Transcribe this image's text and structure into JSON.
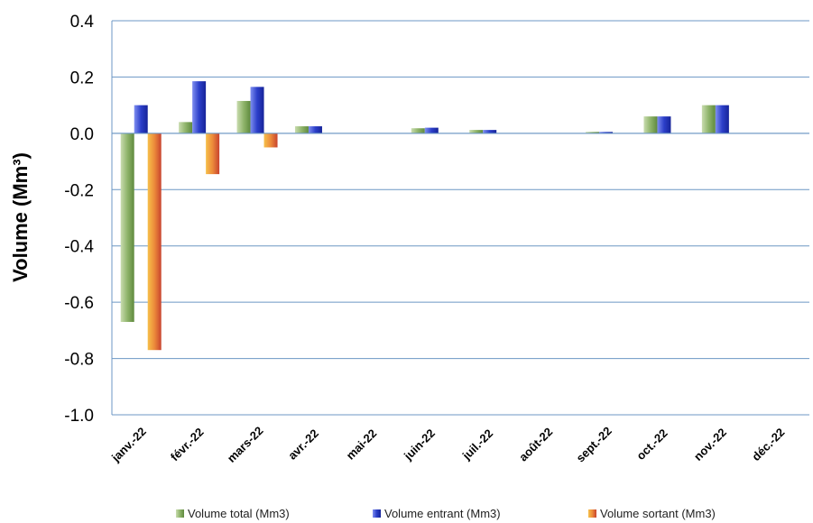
{
  "chart_data": {
    "type": "bar",
    "title": "",
    "xlabel": "",
    "ylabel": "Volume (Mm³)",
    "ylim": [
      -1.0,
      0.4
    ],
    "yticks": [
      "0.4",
      "0.2",
      "0.0",
      "-0.2",
      "-0.4",
      "-0.6",
      "-0.8",
      "-1.0"
    ],
    "ytick_values": [
      0.4,
      0.2,
      0.0,
      -0.2,
      -0.4,
      -0.6,
      -0.8,
      -1.0
    ],
    "grid": "horizontal",
    "legend_position": "bottom",
    "categories": [
      "janv.-22",
      "févr.-22",
      "mars-22",
      "avr.-22",
      "mai-22",
      "juin-22",
      "juil.-22",
      "août-22",
      "sept.-22",
      "oct.-22",
      "nov.-22",
      "déc.-22"
    ],
    "series": [
      {
        "name": "Volume total (Mm3)",
        "color": "#8fb46b",
        "values": [
          -0.67,
          0.04,
          0.115,
          0.025,
          0,
          0.018,
          0.012,
          0,
          0.005,
          0.06,
          0.1,
          0
        ]
      },
      {
        "name": "Volume entrant (Mm3)",
        "color": "#2c3fc9",
        "values": [
          0.1,
          0.185,
          0.165,
          0.025,
          0,
          0.02,
          0.012,
          0,
          0.005,
          0.06,
          0.1,
          0
        ]
      },
      {
        "name": "Volume sortant (Mm3)",
        "color": "#e8743a",
        "values": [
          -0.77,
          -0.145,
          -0.05,
          0,
          0,
          0,
          0,
          0,
          0,
          0,
          0,
          0
        ]
      }
    ]
  }
}
